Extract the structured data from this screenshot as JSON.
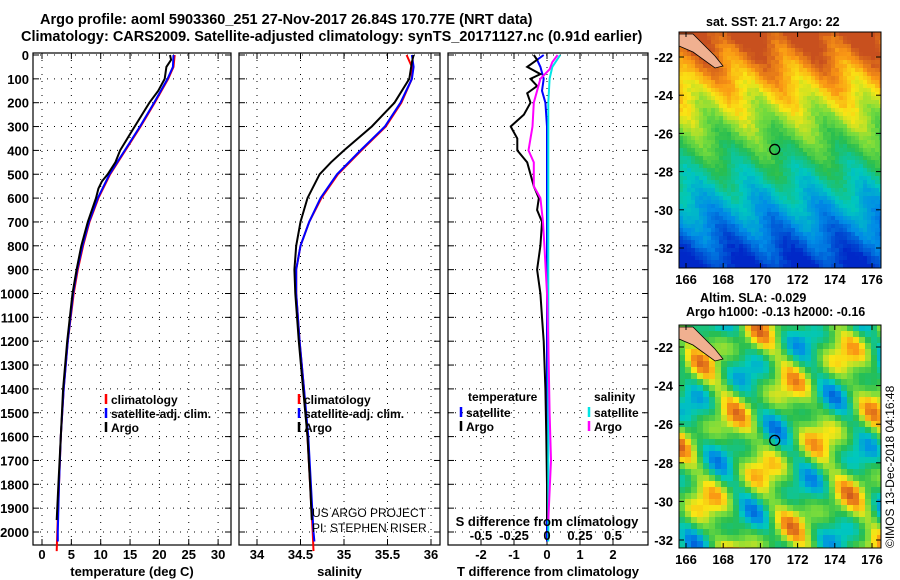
{
  "header": {
    "title_line1": "Argo profile: aoml 5903360_251 27-Nov-2017 26.84S 170.77E (NRT data)",
    "title_line2": "Climatology: CARS2009. Satellite-adjusted climatology: synTS_20171127.nc (0.91d earlier)"
  },
  "credit": "©IMOS 13-Dec-2018 04:16:48",
  "project_note": {
    "line1": "US ARGO PROJECT",
    "line2": "PI: STEPHEN RISER"
  },
  "colors": {
    "climatology": "#ff0000",
    "satellite": "#0000ff",
    "argo": "#000000",
    "sal_satellite": "#00e5e5",
    "sal_argo": "#ff00ff"
  },
  "chart_data": [
    {
      "type": "line",
      "id": "temperature",
      "xlabel": "temperature (deg C)",
      "ylabel": "",
      "xlim": [
        -2,
        32
      ],
      "ylim": [
        2080,
        0
      ],
      "xticks": [
        0,
        5,
        10,
        15,
        20,
        25,
        30
      ],
      "yticks": [
        0,
        100,
        200,
        300,
        400,
        500,
        600,
        700,
        800,
        900,
        1000,
        1100,
        1200,
        1300,
        1400,
        1500,
        1600,
        1700,
        1800,
        1900,
        2000
      ],
      "legend": {
        "placement": "lower-center",
        "entries": [
          "climatology",
          "satellite-adj. clim.",
          "Argo"
        ]
      },
      "series": [
        {
          "name": "climatology",
          "color": "#ff0000",
          "depth": [
            0,
            50,
            100,
            200,
            300,
            400,
            500,
            600,
            700,
            800,
            900,
            1000,
            1200,
            1400,
            1600,
            1800,
            2000,
            2080
          ],
          "values": [
            22.6,
            22.4,
            21.5,
            19.2,
            16.8,
            14.2,
            11.6,
            9.6,
            8.1,
            7.0,
            6.1,
            5.4,
            4.4,
            3.7,
            3.2,
            2.9,
            2.6,
            2.5
          ]
        },
        {
          "name": "satellite-adj. clim.",
          "color": "#0000ff",
          "depth": [
            0,
            50,
            100,
            200,
            300,
            400,
            500,
            600,
            700,
            800,
            900,
            1000,
            1200,
            1400,
            1600,
            1800,
            2000,
            2040
          ],
          "values": [
            22.4,
            22.3,
            21.4,
            19.1,
            16.7,
            14.1,
            11.5,
            9.5,
            8.0,
            6.9,
            6.0,
            5.3,
            4.4,
            3.7,
            3.2,
            2.9,
            2.7,
            2.7
          ]
        },
        {
          "name": "Argo",
          "color": "#000000",
          "depth": [
            0,
            20,
            50,
            100,
            150,
            200,
            300,
            400,
            450,
            500,
            530,
            560,
            600,
            700,
            800,
            900,
            1000,
            1200,
            1400,
            1600,
            1800,
            1950
          ],
          "values": [
            21.8,
            22.0,
            21.2,
            20.9,
            19.8,
            18.3,
            15.8,
            13.3,
            12.5,
            11.2,
            10.2,
            9.6,
            9.2,
            7.8,
            6.7,
            5.9,
            5.2,
            4.3,
            3.6,
            3.2,
            2.8,
            2.5
          ]
        }
      ]
    },
    {
      "type": "line",
      "id": "salinity",
      "xlabel": "salinity",
      "xlim": [
        33.8,
        36.1
      ],
      "ylim": [
        2080,
        0
      ],
      "xticks": [
        34,
        34.5,
        35,
        35.5,
        36
      ],
      "legend": {
        "placement": "lower-center",
        "entries": [
          "climatology",
          "satellite-adj. clim.",
          "Argo"
        ]
      },
      "series": [
        {
          "name": "climatology",
          "color": "#ff0000",
          "depth": [
            0,
            50,
            100,
            200,
            300,
            400,
            500,
            600,
            700,
            800,
            900,
            1000,
            1200,
            1400,
            1600,
            1800,
            2000,
            2080
          ],
          "values": [
            35.72,
            35.78,
            35.78,
            35.66,
            35.48,
            35.2,
            34.93,
            34.74,
            34.6,
            34.5,
            34.45,
            34.45,
            34.49,
            34.54,
            34.58,
            34.61,
            34.64,
            34.65
          ]
        },
        {
          "name": "satellite-adj. clim.",
          "color": "#0000ff",
          "depth": [
            0,
            50,
            100,
            200,
            300,
            400,
            500,
            600,
            700,
            800,
            900,
            1000,
            1200,
            1400,
            1600,
            1800,
            2000,
            2040
          ],
          "values": [
            35.78,
            35.8,
            35.78,
            35.65,
            35.47,
            35.19,
            34.92,
            34.73,
            34.6,
            34.5,
            34.45,
            34.45,
            34.49,
            34.54,
            34.59,
            34.62,
            34.65,
            34.66
          ]
        },
        {
          "name": "Argo",
          "color": "#000000",
          "depth": [
            0,
            30,
            100,
            200,
            300,
            400,
            450,
            500,
            600,
            700,
            800,
            900,
            1000,
            1200,
            1400,
            1600,
            1800,
            1950
          ],
          "values": [
            35.8,
            35.78,
            35.75,
            35.58,
            35.32,
            35.0,
            34.85,
            34.72,
            34.58,
            34.5,
            34.45,
            34.43,
            34.44,
            34.48,
            34.53,
            34.58,
            34.61,
            34.63
          ]
        }
      ]
    },
    {
      "type": "line",
      "id": "differences",
      "xlabel": "T difference from climatology",
      "xlabel2": "S difference from climatology",
      "xlim": [
        -2.9,
        3.1
      ],
      "ylim": [
        2080,
        0
      ],
      "xticks": [
        -2,
        -1,
        0,
        1,
        2
      ],
      "xticks_s": [
        -0.5,
        -0.25,
        0,
        0.25,
        0.5
      ],
      "legend": {
        "placement": "lower-center",
        "temp_title": "temperature",
        "sal_title": "salinity",
        "entries": [
          "satellite",
          "Argo"
        ]
      },
      "series": [
        {
          "name": "temperature satellite",
          "color": "#0000ff",
          "scale": 1,
          "depth": [
            0,
            20,
            50,
            100,
            150,
            200,
            300,
            500,
            800,
            1200,
            1600,
            2000,
            2040
          ],
          "values": [
            -0.1,
            -0.3,
            -0.2,
            -0.1,
            -0.15,
            -0.05,
            0,
            0,
            0,
            0,
            0,
            0,
            0
          ]
        },
        {
          "name": "temperature Argo",
          "color": "#000000",
          "scale": 1,
          "depth": [
            0,
            20,
            50,
            80,
            100,
            130,
            160,
            200,
            250,
            300,
            350,
            400,
            450,
            500,
            550,
            600,
            650,
            700,
            800,
            900,
            1000,
            1100,
            1200,
            1400,
            1600,
            1800,
            1950
          ],
          "values": [
            -0.4,
            -0.3,
            -0.6,
            -0.2,
            -0.5,
            -0.3,
            -0.6,
            -0.5,
            -0.7,
            -1.1,
            -0.9,
            -0.9,
            -0.6,
            -0.5,
            -0.4,
            -0.25,
            -0.3,
            -0.15,
            -0.2,
            -0.3,
            -0.2,
            -0.15,
            -0.1,
            -0.05,
            -0.02,
            0,
            0
          ]
        },
        {
          "name": "salinity satellite",
          "color": "#00e5e5",
          "scale": 4,
          "depth": [
            0,
            50,
            100,
            200,
            400,
            800,
            1200,
            1600,
            2000,
            2040
          ],
          "values": [
            0.1,
            0.04,
            0.02,
            0.01,
            0.01,
            0.01,
            0.01,
            0.01,
            0.01,
            0.01
          ]
        },
        {
          "name": "salinity Argo",
          "color": "#ff00ff",
          "scale": 4,
          "depth": [
            0,
            30,
            60,
            100,
            200,
            300,
            400,
            450,
            500,
            550,
            600,
            700,
            800,
            1000,
            1200,
            1500,
            1700,
            1950
          ],
          "values": [
            0.08,
            0.04,
            0.02,
            -0.05,
            -0.1,
            -0.11,
            -0.14,
            -0.1,
            -0.1,
            -0.1,
            -0.05,
            -0.03,
            -0.02,
            0,
            0.01,
            0.02,
            0.03,
            0.01
          ]
        }
      ]
    },
    {
      "type": "heatmap",
      "id": "sst_map",
      "title": "sat. SST: 21.7 Argo: 22",
      "xlim": [
        164.8,
        176.5
      ],
      "ylim": [
        -33.1,
        -21.2
      ],
      "xticks": [
        166,
        168,
        170,
        172,
        174,
        176
      ],
      "yticks": [
        -22,
        -24,
        -26,
        -28,
        -30,
        -32
      ],
      "marker": {
        "lon": 170.77,
        "lat": -26.84
      }
    },
    {
      "type": "heatmap",
      "id": "sla_map",
      "title_line1": "Altim. SLA: -0.029",
      "title_line2": "Argo h1000: -0.13 h2000: -0.16",
      "xlim": [
        164.8,
        176.5
      ],
      "ylim": [
        -33.1,
        -21.2
      ],
      "xticks": [
        166,
        168,
        170,
        172,
        174,
        176
      ],
      "yticks": [
        -22,
        -24,
        -26,
        -28,
        -30,
        -32
      ],
      "marker": {
        "lon": 170.77,
        "lat": -26.84
      }
    }
  ]
}
